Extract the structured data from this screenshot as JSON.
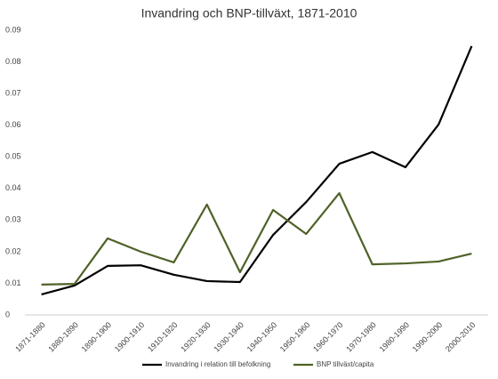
{
  "chart_data": {
    "type": "line",
    "title": "Invandring och BNP-tillväxt, 1871-2010",
    "categories": [
      "1871-1880",
      "1880-1890",
      "1890-1900",
      "1900-1910",
      "1910-1920",
      "1920-1930",
      "1930-1940",
      "1940-1950",
      "1950-1960",
      "1960-1970",
      "1970-1980",
      "1980-1990",
      "1990-2000",
      "2000-2010"
    ],
    "series": [
      {
        "name": "Invandring i relation till befolkning",
        "color": "#000000",
        "values": [
          0.0065,
          0.0093,
          0.0155,
          0.0157,
          0.0127,
          0.0107,
          0.0104,
          0.0253,
          0.0357,
          0.0478,
          0.0515,
          0.0467,
          0.0602,
          0.085
        ]
      },
      {
        "name": "BNP tillväxt/capita",
        "color": "#4f6228",
        "values": [
          0.0096,
          0.0098,
          0.0242,
          0.02,
          0.0166,
          0.0349,
          0.0135,
          0.0332,
          0.0256,
          0.0385,
          0.016,
          0.0163,
          0.0169,
          0.0194
        ]
      }
    ],
    "ylim": [
      0,
      0.09
    ],
    "yticks": [
      0,
      0.01,
      0.02,
      0.03,
      0.04,
      0.05,
      0.06,
      0.07,
      0.08,
      0.09
    ],
    "grid": false,
    "legend": "bottom"
  }
}
